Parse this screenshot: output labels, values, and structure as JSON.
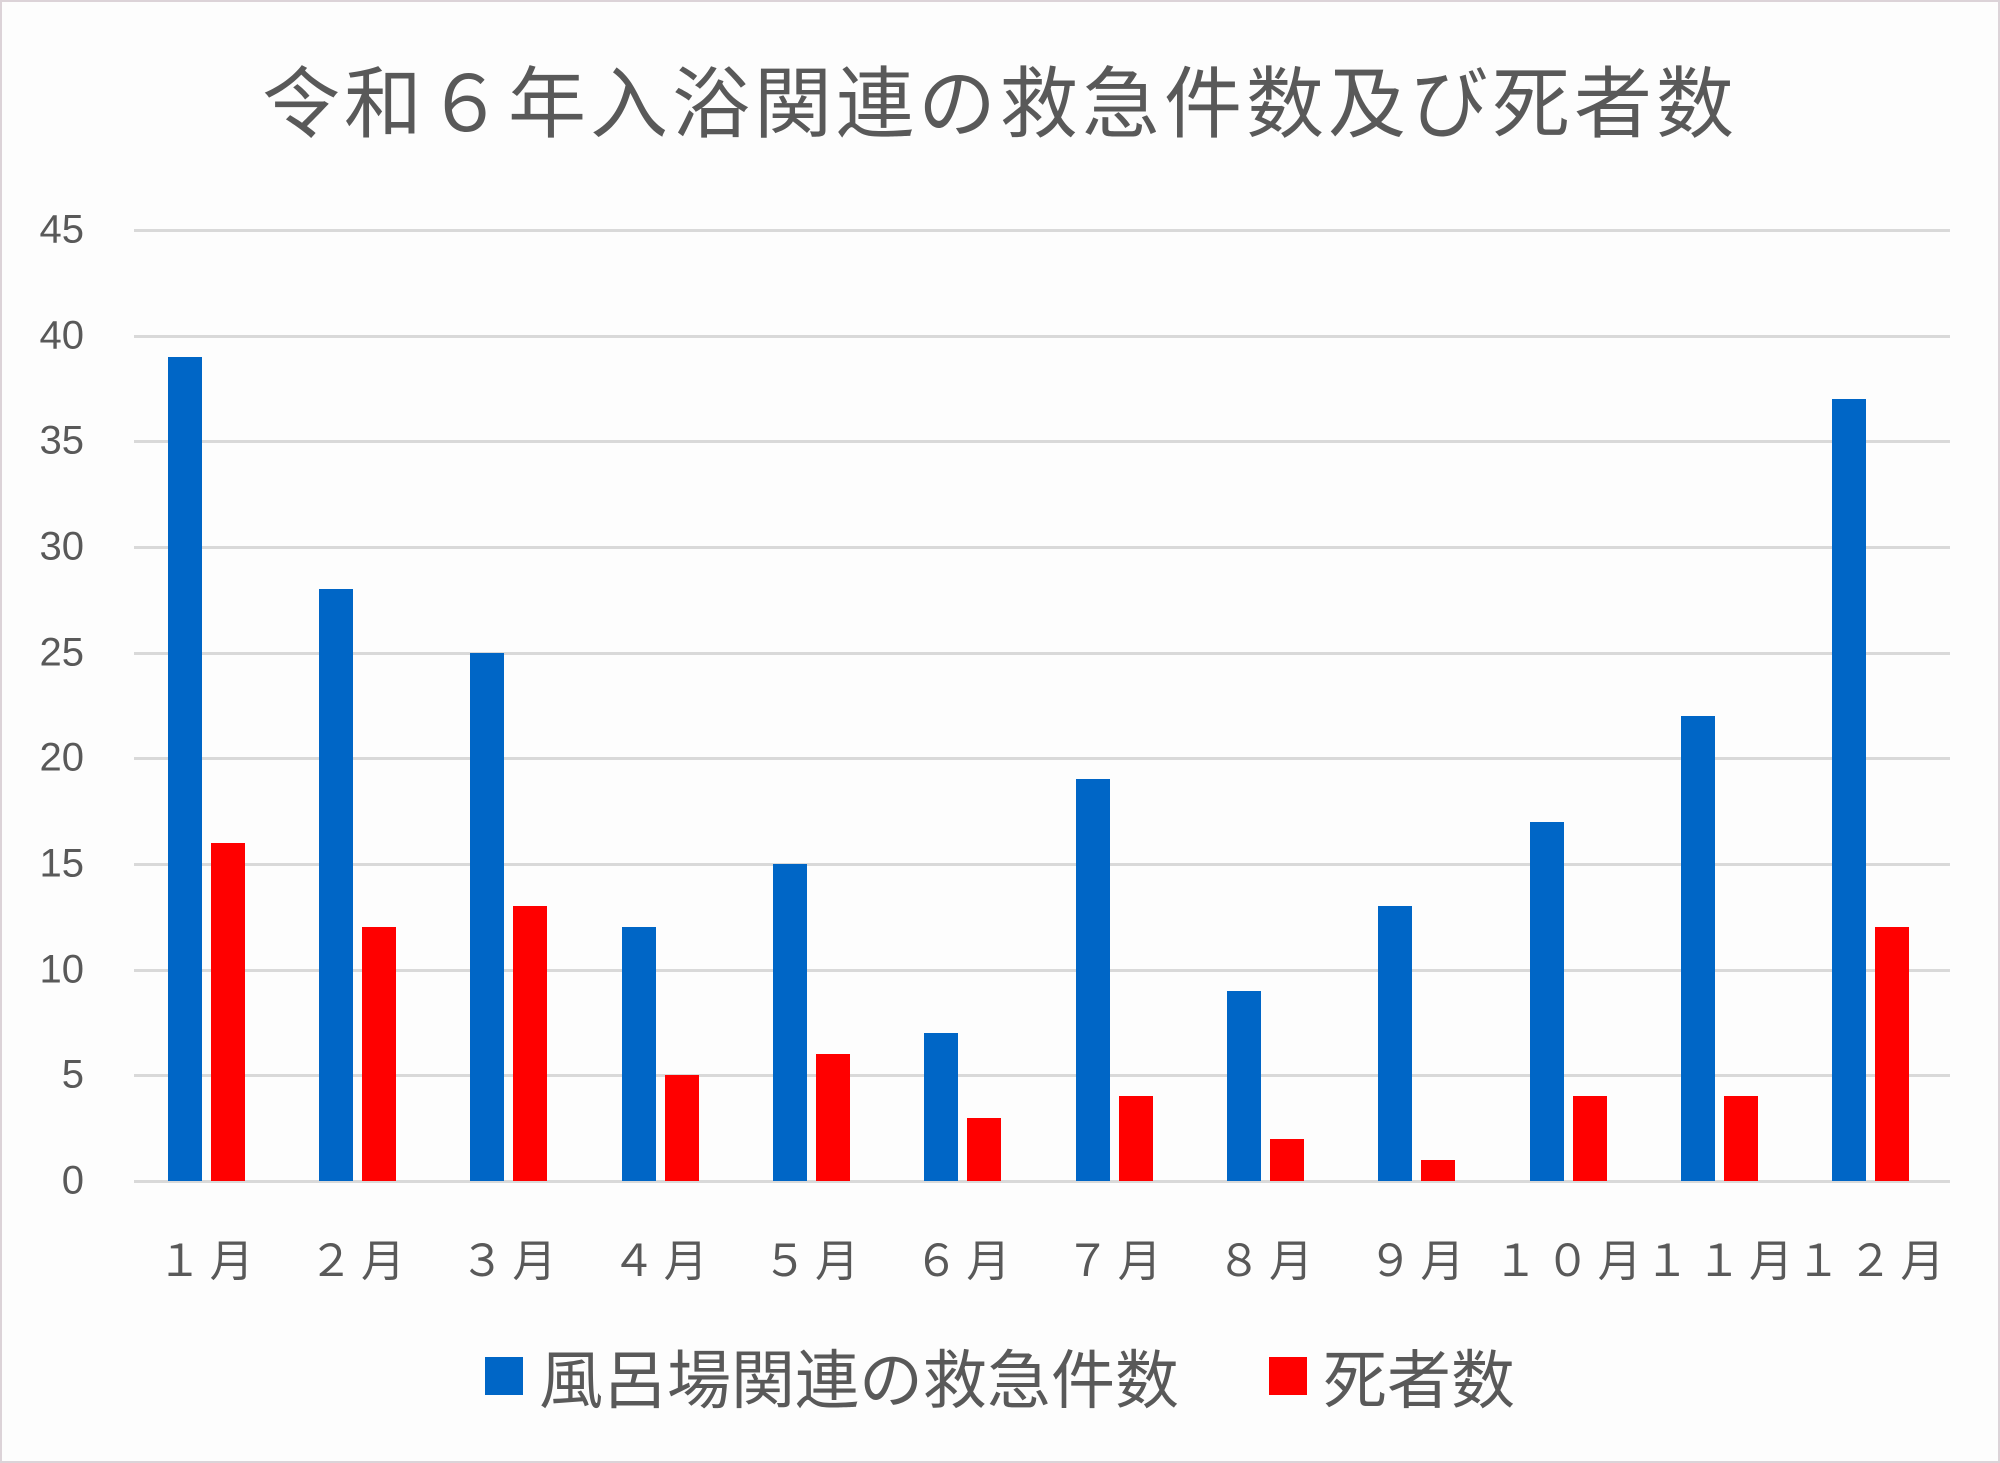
{
  "chart_data": {
    "type": "bar",
    "title": "令和６年入浴関連の救急件数及び死者数",
    "categories": [
      "１月",
      "２月",
      "３月",
      "４月",
      "５月",
      "６月",
      "７月",
      "８月",
      "９月",
      "１０月",
      "１１月",
      "１２月"
    ],
    "series": [
      {
        "name": "風呂場関連の救急件数",
        "color": "#0066c6",
        "values": [
          39,
          28,
          25,
          12,
          15,
          7,
          19,
          9,
          13,
          17,
          22,
          37
        ]
      },
      {
        "name": "死者数",
        "color": "#ff0000",
        "values": [
          16,
          12,
          13,
          5,
          6,
          3,
          4,
          2,
          1,
          4,
          4,
          12
        ]
      }
    ],
    "xlabel": "",
    "ylabel": "",
    "ylim": [
      0,
      45
    ],
    "yticks": [
      0,
      5,
      10,
      15,
      20,
      25,
      30,
      35,
      40,
      45
    ],
    "grid": true,
    "legend_position": "bottom"
  }
}
